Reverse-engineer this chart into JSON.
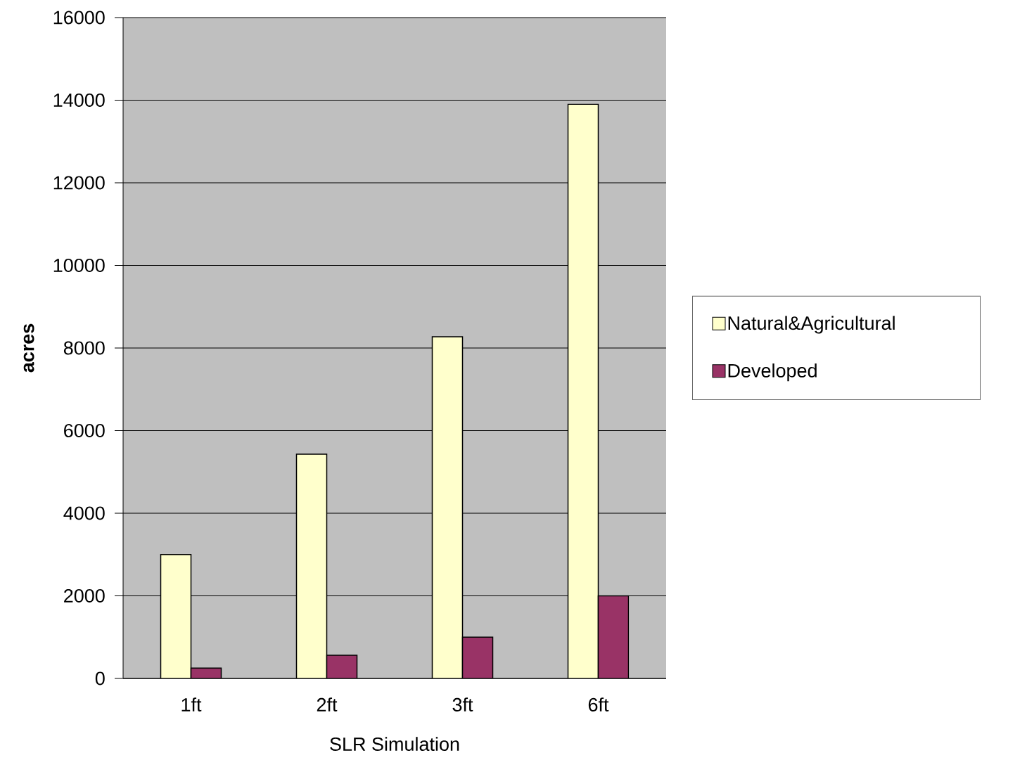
{
  "chart_data": {
    "type": "bar",
    "xlabel": "SLR Simulation",
    "ylabel": "acres",
    "categories": [
      "1ft",
      "2ft",
      "3ft",
      "6ft"
    ],
    "series": [
      {
        "color": "#9999ff",
        "values": [
          0,
          null,
          null,
          null
        ]
      },
      {
        "name": "Natural&Agricultural",
        "color": "#ffffcc",
        "values": [
          3000,
          5430,
          8270,
          13900
        ]
      },
      {
        "name": "Developed",
        "color": "#993366",
        "values": [
          250,
          560,
          1000,
          2000
        ]
      }
    ],
    "ylim": [
      0,
      16000
    ],
    "yticks": [
      0,
      2000,
      4000,
      6000,
      8000,
      10000,
      12000,
      14000,
      16000
    ],
    "grid": "y",
    "legend": "right"
  }
}
